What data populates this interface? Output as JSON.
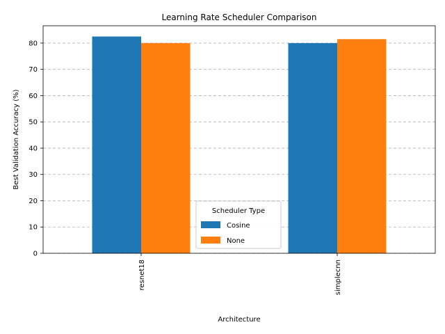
{
  "chart_data": {
    "type": "bar",
    "title": "Learning Rate Scheduler Comparison",
    "xlabel": "Architecture",
    "ylabel": "Best Validation Accuracy (%)",
    "categories": [
      "resnet18",
      "simplecnn"
    ],
    "series": [
      {
        "name": "Cosine",
        "values": [
          82.5,
          80.0
        ],
        "color": "#1f77b4"
      },
      {
        "name": "None",
        "values": [
          80.0,
          81.5
        ],
        "color": "#ff7f0e"
      }
    ],
    "ylim": [
      0,
      86.6
    ],
    "yticks": [
      0,
      10,
      20,
      30,
      40,
      50,
      60,
      70,
      80
    ],
    "grid": "y, dashed",
    "legend": {
      "title": "Scheduler Type",
      "position": "lower-center"
    }
  }
}
